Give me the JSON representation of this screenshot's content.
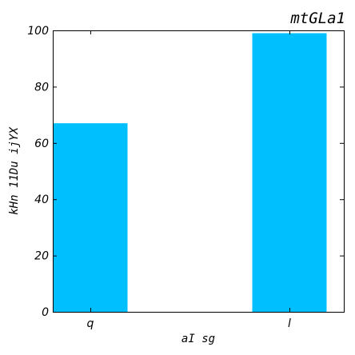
{
  "chart_data": {
    "type": "bar",
    "title": "mtGLa1",
    "xlabel": "aI sg",
    "ylabel": "kHn 11Du ijYX",
    "categories": [
      "q",
      "l"
    ],
    "values": [
      67,
      99
    ],
    "ylim": [
      0,
      100
    ],
    "yticks": [
      0,
      20,
      40,
      60,
      80,
      100
    ],
    "grid": false,
    "bar_color": "#00bfff"
  }
}
